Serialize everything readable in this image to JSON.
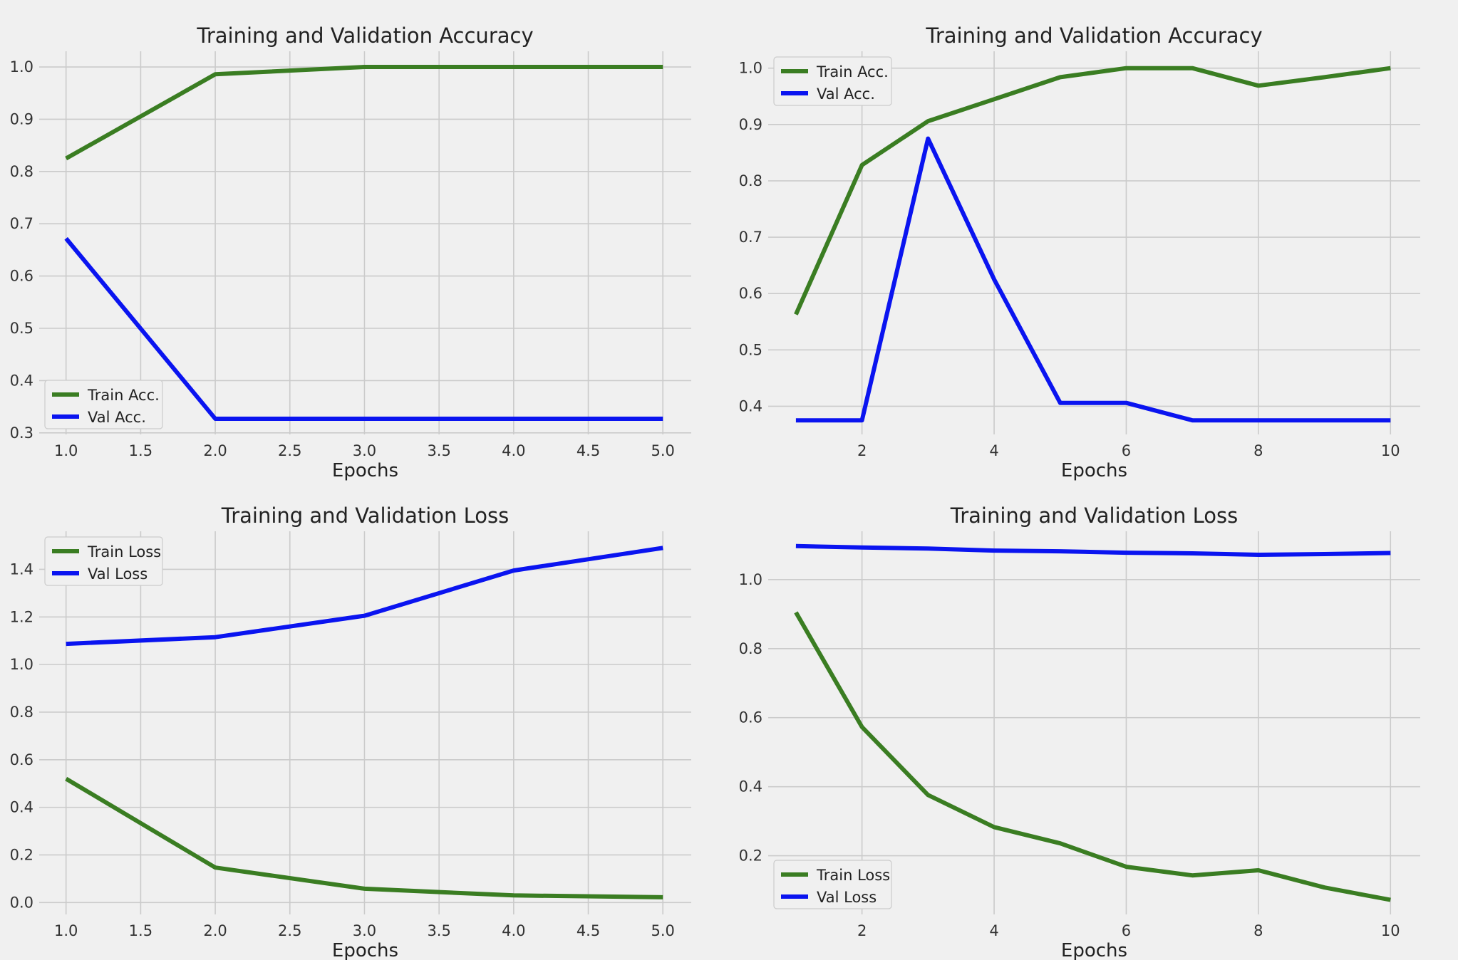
{
  "figure": {
    "background": "#f0f0f0",
    "series_colors": {
      "train": "#3a7d22",
      "val": "#0a14f0"
    }
  },
  "chart_data": [
    {
      "type": "line",
      "title": "Training and Validation Accuracy",
      "xlabel": "Epochs",
      "ylabel": "",
      "xlim": [
        0.82,
        5.19
      ],
      "ylim": [
        0.297,
        1.03
      ],
      "xticks": [
        1.0,
        1.5,
        2.0,
        2.5,
        3.0,
        3.5,
        4.0,
        4.5,
        5.0
      ],
      "xtick_labels": [
        "1.0",
        "1.5",
        "2.0",
        "2.5",
        "3.0",
        "3.5",
        "4.0",
        "4.5",
        "5.0"
      ],
      "yticks": [
        0.3,
        0.4,
        0.5,
        0.6,
        0.7,
        0.8,
        0.9,
        1.0
      ],
      "ytick_labels": [
        "0.3",
        "0.4",
        "0.5",
        "0.6",
        "0.7",
        "0.8",
        "0.9",
        "1.0"
      ],
      "legend_position": "lower-left",
      "grid": true,
      "series": [
        {
          "name": "Train Acc.",
          "color": "#3a7d22",
          "x": [
            1,
            2,
            3,
            4,
            5
          ],
          "y": [
            0.825,
            0.986,
            1.0,
            1.0,
            1.0
          ]
        },
        {
          "name": "Val Acc.",
          "color": "#0a14f0",
          "x": [
            1,
            2,
            3,
            4,
            5
          ],
          "y": [
            0.672,
            0.327,
            0.327,
            0.327,
            0.327
          ]
        }
      ]
    },
    {
      "type": "line",
      "title": "Training and Validation Accuracy",
      "xlabel": "Epochs",
      "ylabel": "",
      "xlim": [
        0.58,
        10.45
      ],
      "ylim": [
        0.35,
        1.03
      ],
      "xticks": [
        2,
        4,
        6,
        8,
        10
      ],
      "xtick_labels": [
        "2",
        "4",
        "6",
        "8",
        "10"
      ],
      "yticks": [
        0.4,
        0.5,
        0.6,
        0.7,
        0.8,
        0.9,
        1.0
      ],
      "ytick_labels": [
        "0.4",
        "0.5",
        "0.6",
        "0.7",
        "0.8",
        "0.9",
        "1.0"
      ],
      "legend_position": "upper-left",
      "grid": true,
      "series": [
        {
          "name": "Train Acc.",
          "color": "#3a7d22",
          "x": [
            1,
            2,
            3,
            4,
            5,
            6,
            7,
            8,
            9,
            10
          ],
          "y": [
            0.563,
            0.828,
            0.906,
            0.945,
            0.984,
            1.0,
            1.0,
            0.969,
            0.984,
            1.0
          ]
        },
        {
          "name": "Val Acc.",
          "color": "#0a14f0",
          "x": [
            1,
            2,
            3,
            4,
            5,
            6,
            7,
            8,
            9,
            10
          ],
          "y": [
            0.375,
            0.375,
            0.875,
            0.625,
            0.406,
            0.406,
            0.375,
            0.375,
            0.375,
            0.375
          ]
        }
      ]
    },
    {
      "type": "line",
      "title": "Training and Validation Loss",
      "xlabel": "Epochs",
      "ylabel": "",
      "xlim": [
        0.82,
        5.19
      ],
      "ylim": [
        -0.05,
        1.56
      ],
      "xticks": [
        1.0,
        1.5,
        2.0,
        2.5,
        3.0,
        3.5,
        4.0,
        4.5,
        5.0
      ],
      "xtick_labels": [
        "1.0",
        "1.5",
        "2.0",
        "2.5",
        "3.0",
        "3.5",
        "4.0",
        "4.5",
        "5.0"
      ],
      "yticks": [
        0.0,
        0.2,
        0.4,
        0.6,
        0.8,
        1.0,
        1.2,
        1.4
      ],
      "ytick_labels": [
        "0.0",
        "0.2",
        "0.4",
        "0.6",
        "0.8",
        "1.0",
        "1.2",
        "1.4"
      ],
      "legend_position": "upper-left",
      "grid": true,
      "series": [
        {
          "name": "Train Loss",
          "color": "#3a7d22",
          "x": [
            1,
            2,
            3,
            4,
            5
          ],
          "y": [
            0.52,
            0.147,
            0.058,
            0.03,
            0.022
          ]
        },
        {
          "name": "Val Loss",
          "color": "#0a14f0",
          "x": [
            1,
            2,
            3,
            4,
            5
          ],
          "y": [
            1.087,
            1.115,
            1.205,
            1.395,
            1.49
          ]
        }
      ]
    },
    {
      "type": "line",
      "title": "Training and Validation Loss",
      "xlabel": "Epochs",
      "ylabel": "",
      "xlim": [
        0.58,
        10.45
      ],
      "ylim": [
        0.03,
        1.14
      ],
      "xticks": [
        2,
        4,
        6,
        8,
        10
      ],
      "xtick_labels": [
        "2",
        "4",
        "6",
        "8",
        "10"
      ],
      "yticks": [
        0.2,
        0.4,
        0.6,
        0.8,
        1.0
      ],
      "ytick_labels": [
        "0.2",
        "0.4",
        "0.6",
        "0.8",
        "1.0"
      ],
      "legend_position": "lower-left",
      "grid": true,
      "series": [
        {
          "name": "Train Loss",
          "color": "#3a7d22",
          "x": [
            1,
            2,
            3,
            4,
            5,
            6,
            7,
            8,
            9,
            10
          ],
          "y": [
            0.905,
            0.573,
            0.376,
            0.283,
            0.236,
            0.168,
            0.143,
            0.158,
            0.108,
            0.072
          ]
        },
        {
          "name": "Val Loss",
          "color": "#0a14f0",
          "x": [
            1,
            2,
            3,
            4,
            5,
            6,
            7,
            8,
            9,
            10
          ],
          "y": [
            1.097,
            1.093,
            1.09,
            1.084,
            1.082,
            1.078,
            1.076,
            1.072,
            1.074,
            1.077
          ]
        }
      ]
    }
  ]
}
